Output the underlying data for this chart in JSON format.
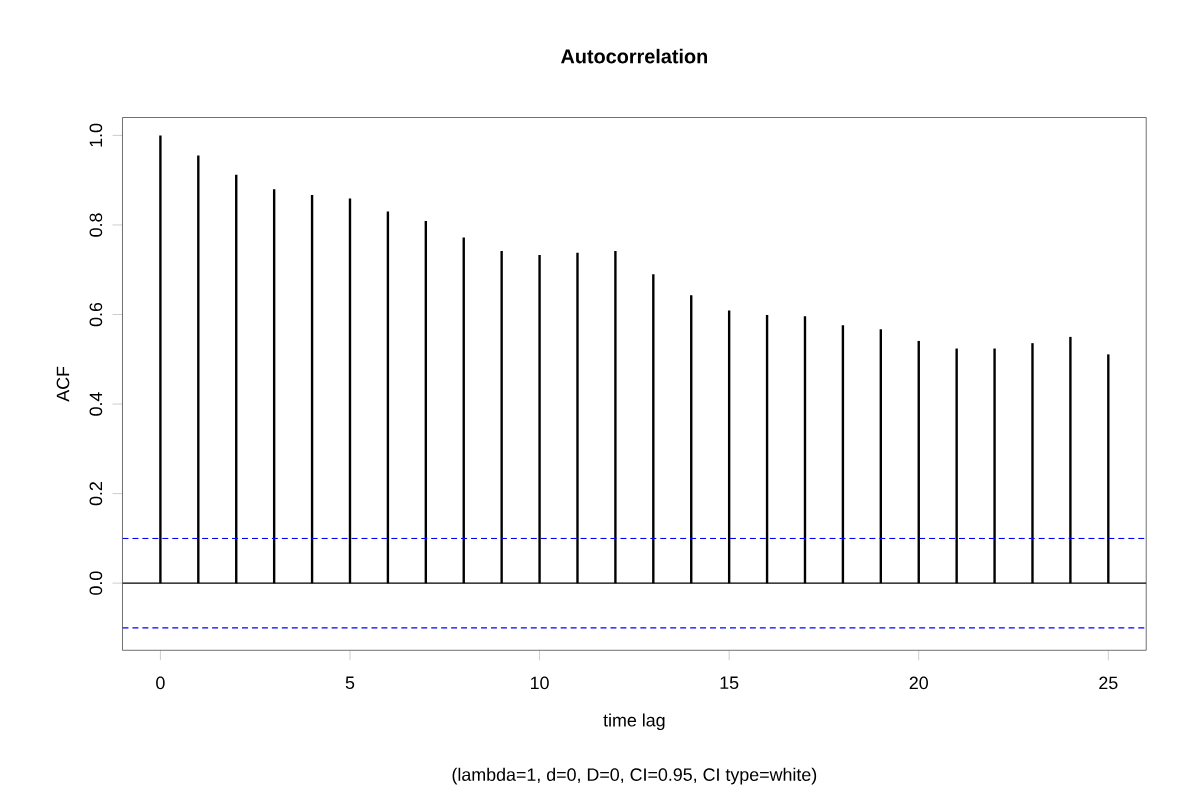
{
  "chart_data": {
    "type": "bar",
    "title": "Autocorrelation",
    "xlabel": "time lag",
    "ylabel": "ACF",
    "x": [
      0,
      1,
      2,
      3,
      4,
      5,
      6,
      7,
      8,
      9,
      10,
      11,
      12,
      13,
      14,
      15,
      16,
      17,
      18,
      19,
      20,
      21,
      22,
      23,
      24,
      25
    ],
    "values": [
      1.0,
      0.955,
      0.912,
      0.88,
      0.867,
      0.859,
      0.83,
      0.809,
      0.772,
      0.742,
      0.733,
      0.738,
      0.742,
      0.69,
      0.643,
      0.609,
      0.599,
      0.596,
      0.576,
      0.567,
      0.541,
      0.524,
      0.524,
      0.536,
      0.55,
      0.511
    ],
    "color": "#000000",
    "xlim": [
      -1,
      26
    ],
    "ylim": [
      -0.15,
      1.04
    ],
    "xticks": [
      0,
      5,
      10,
      15,
      20,
      25
    ],
    "yticks": [
      {
        "value": 0,
        "label": "0.0"
      },
      {
        "value": 0.2,
        "label": "0.2"
      },
      {
        "value": 0.4,
        "label": "0.4"
      },
      {
        "value": 0.6,
        "label": "0.6"
      },
      {
        "value": 0.8,
        "label": "0.8"
      },
      {
        "value": 1.0,
        "label": "1.0"
      }
    ],
    "ref_lines": [
      {
        "axis": "y",
        "value": 0,
        "color": "#000000",
        "line_style": "solid"
      },
      {
        "axis": "y",
        "value": 0.1,
        "color": "#0000ff",
        "line_style": "dashed"
      },
      {
        "axis": "y",
        "value": -0.1,
        "color": "#0000ff",
        "line_style": "dashed"
      }
    ],
    "annotations": [
      "(lambda=1, d=0, D=0, CI=0.95, CI type=white)"
    ],
    "grid": false
  }
}
